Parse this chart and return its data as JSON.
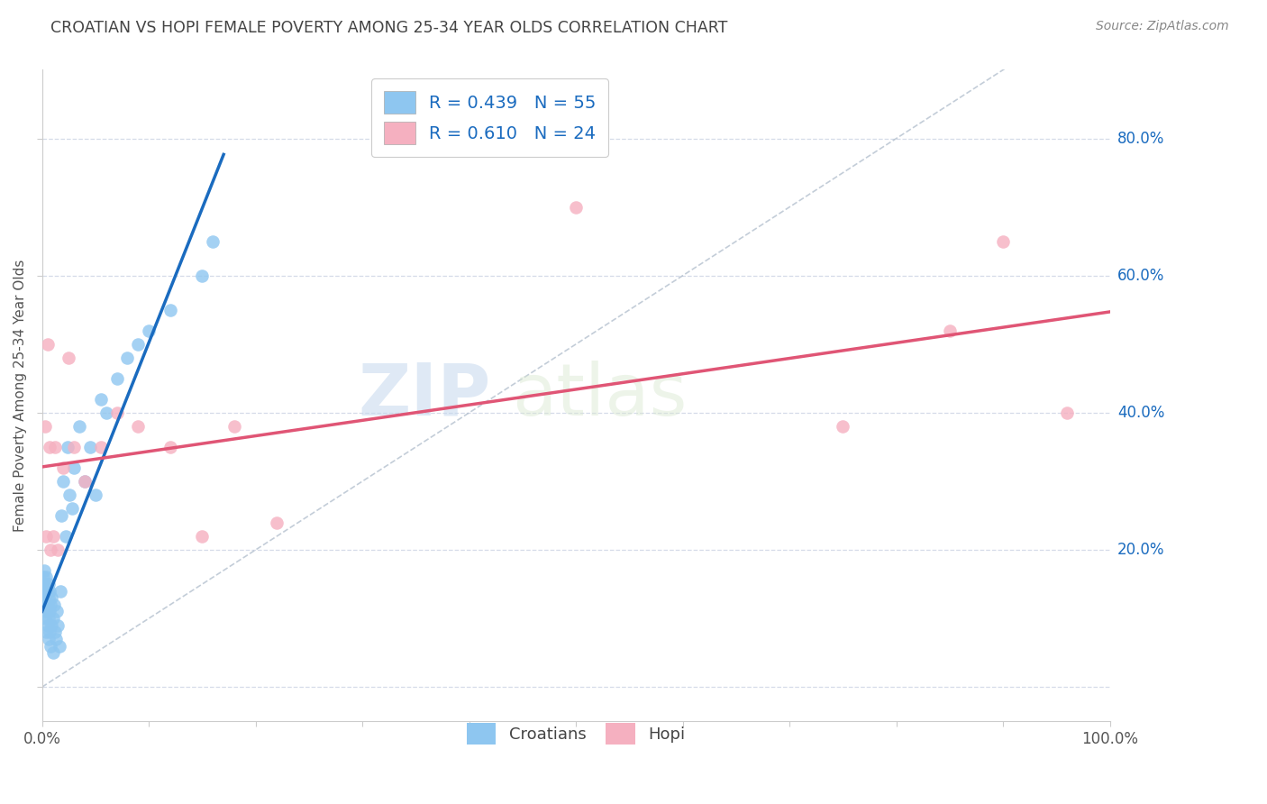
{
  "title": "CROATIAN VS HOPI FEMALE POVERTY AMONG 25-34 YEAR OLDS CORRELATION CHART",
  "source": "Source: ZipAtlas.com",
  "ylabel": "Female Poverty Among 25-34 Year Olds",
  "xlim": [
    0,
    1.0
  ],
  "ylim": [
    -0.05,
    0.9
  ],
  "croatian_color": "#8ec6f0",
  "hopi_color": "#f5b0c0",
  "croatian_line_color": "#1a6bbf",
  "hopi_line_color": "#e05575",
  "diagonal_color": "#aab8c8",
  "background": "#ffffff",
  "grid_color": "#d5dbe8",
  "legend_color": "#1a6bbf",
  "R_croatian": 0.439,
  "N_croatian": 55,
  "R_hopi": 0.61,
  "N_hopi": 24,
  "watermark_zip": "ZIP",
  "watermark_atlas": "atlas",
  "croatian_x": [
    0.001,
    0.001,
    0.002,
    0.002,
    0.002,
    0.003,
    0.003,
    0.003,
    0.004,
    0.004,
    0.004,
    0.004,
    0.005,
    0.005,
    0.005,
    0.006,
    0.006,
    0.006,
    0.006,
    0.007,
    0.007,
    0.007,
    0.008,
    0.008,
    0.009,
    0.009,
    0.01,
    0.01,
    0.011,
    0.012,
    0.013,
    0.014,
    0.015,
    0.016,
    0.017,
    0.018,
    0.02,
    0.022,
    0.024,
    0.026,
    0.028,
    0.03,
    0.035,
    0.04,
    0.045,
    0.05,
    0.055,
    0.06,
    0.07,
    0.08,
    0.09,
    0.1,
    0.12,
    0.15,
    0.16
  ],
  "croatian_y": [
    0.14,
    0.16,
    0.12,
    0.15,
    0.17,
    0.1,
    0.13,
    0.15,
    0.08,
    0.11,
    0.14,
    0.16,
    0.09,
    0.12,
    0.14,
    0.07,
    0.1,
    0.13,
    0.15,
    0.08,
    0.11,
    0.14,
    0.06,
    0.12,
    0.09,
    0.13,
    0.05,
    0.1,
    0.12,
    0.08,
    0.07,
    0.11,
    0.09,
    0.06,
    0.14,
    0.25,
    0.3,
    0.22,
    0.35,
    0.28,
    0.26,
    0.32,
    0.38,
    0.3,
    0.35,
    0.28,
    0.42,
    0.4,
    0.45,
    0.48,
    0.5,
    0.52,
    0.55,
    0.6,
    0.65
  ],
  "hopi_x": [
    0.003,
    0.004,
    0.005,
    0.007,
    0.008,
    0.01,
    0.012,
    0.015,
    0.02,
    0.025,
    0.03,
    0.04,
    0.055,
    0.07,
    0.09,
    0.12,
    0.15,
    0.18,
    0.22,
    0.5,
    0.75,
    0.85,
    0.9,
    0.96
  ],
  "hopi_y": [
    0.38,
    0.22,
    0.5,
    0.35,
    0.2,
    0.22,
    0.35,
    0.2,
    0.32,
    0.48,
    0.35,
    0.3,
    0.35,
    0.4,
    0.38,
    0.35,
    0.22,
    0.38,
    0.24,
    0.7,
    0.38,
    0.52,
    0.65,
    0.4
  ]
}
